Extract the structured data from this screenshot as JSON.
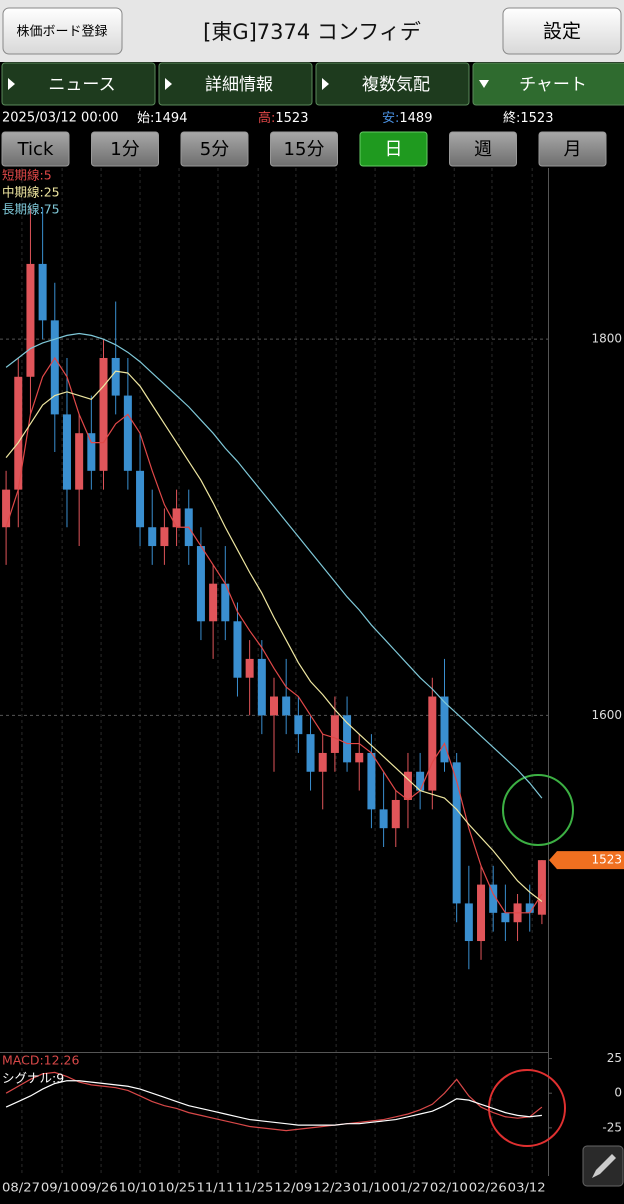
{
  "header": {
    "register": "株価ボード登録",
    "title": "[東G]7374 コンフィデ",
    "settings": "設定"
  },
  "tabs": [
    "ニュース",
    "詳細情報",
    "複数気配",
    "チャート"
  ],
  "active_tab": 3,
  "info": {
    "datetime": "2025/03/12 00:00",
    "open_label": "始:",
    "open": 1494,
    "high_label": "高:",
    "high": 1523,
    "low_label": "安:",
    "low": 1489,
    "close_label": "終:",
    "close": 1523
  },
  "periods": [
    "Tick",
    "1分",
    "5分",
    "15分",
    "日",
    "週",
    "月"
  ],
  "active_period": 4,
  "chart_data": [
    {
      "type": "candlestick",
      "up_color": "#e0555a",
      "down_color": "#3a8fd0",
      "xlim": [
        -0.5,
        44.5
      ],
      "xticks": [
        {
          "value": 1.3,
          "label": "08/27"
        },
        {
          "value": 4.6,
          "label": "09/10"
        },
        {
          "value": 7.8,
          "label": "09/26"
        },
        {
          "value": 11,
          "label": "10/10"
        },
        {
          "value": 14.2,
          "label": "10/25"
        },
        {
          "value": 17.4,
          "label": "11/11"
        },
        {
          "value": 20.7,
          "label": "11/25"
        },
        {
          "value": 23.8,
          "label": "12/09"
        },
        {
          "value": 27.1,
          "label": "12/23"
        },
        {
          "value": 30.3,
          "label": "01/10"
        },
        {
          "value": 33.5,
          "label": "01/27"
        },
        {
          "value": 36.8,
          "label": "02/10"
        },
        {
          "value": 39.9,
          "label": "02/26"
        },
        {
          "value": 43.2,
          "label": "03/12"
        }
      ],
      "ylim": [
        1421,
        1891
      ],
      "yticks": [
        1800,
        1600
      ],
      "last_price": 1523,
      "open": [
        1700,
        1720,
        1780,
        1840,
        1810,
        1760,
        1720,
        1750,
        1730,
        1790,
        1770,
        1730,
        1700,
        1690,
        1700,
        1710,
        1690,
        1650,
        1670,
        1650,
        1620,
        1630,
        1600,
        1610,
        1600,
        1590,
        1570,
        1580,
        1600,
        1575,
        1580,
        1550,
        1540,
        1555,
        1570,
        1560,
        1610,
        1575,
        1500,
        1480,
        1510,
        1495,
        1490,
        1500,
        1494
      ],
      "high": [
        1730,
        1790,
        1870,
        1870,
        1830,
        1790,
        1760,
        1770,
        1800,
        1820,
        1790,
        1750,
        1720,
        1710,
        1720,
        1720,
        1700,
        1680,
        1690,
        1660,
        1640,
        1640,
        1620,
        1630,
        1610,
        1600,
        1590,
        1610,
        1610,
        1590,
        1590,
        1570,
        1560,
        1580,
        1580,
        1620,
        1630,
        1580,
        1520,
        1520,
        1520,
        1510,
        1505,
        1510,
        1523
      ],
      "low": [
        1680,
        1700,
        1760,
        1800,
        1740,
        1700,
        1690,
        1720,
        1720,
        1760,
        1720,
        1690,
        1680,
        1680,
        1690,
        1680,
        1640,
        1630,
        1640,
        1610,
        1600,
        1590,
        1570,
        1590,
        1580,
        1560,
        1550,
        1570,
        1570,
        1560,
        1540,
        1530,
        1530,
        1540,
        1550,
        1550,
        1570,
        1490,
        1465,
        1470,
        1485,
        1480,
        1480,
        1485,
        1489
      ],
      "close": [
        1720,
        1780,
        1840,
        1810,
        1760,
        1720,
        1750,
        1730,
        1790,
        1770,
        1730,
        1700,
        1690,
        1700,
        1710,
        1690,
        1650,
        1670,
        1650,
        1620,
        1630,
        1600,
        1610,
        1600,
        1590,
        1570,
        1580,
        1600,
        1575,
        1580,
        1550,
        1540,
        1555,
        1570,
        1560,
        1610,
        1575,
        1500,
        1480,
        1510,
        1495,
        1490,
        1500,
        1495,
        1523
      ],
      "series": [
        {
          "name": "短期線:5",
          "color": "#e04848",
          "values": [
            1700,
            1720,
            1760,
            1780,
            1790,
            1780,
            1760,
            1745,
            1745,
            1755,
            1760,
            1750,
            1730,
            1712,
            1700,
            1700,
            1690,
            1680,
            1670,
            1655,
            1645,
            1636,
            1625,
            1615,
            1610,
            1600,
            1590,
            1588,
            1585,
            1585,
            1580,
            1570,
            1560,
            1555,
            1560,
            1575,
            1585,
            1565,
            1540,
            1520,
            1505,
            1495,
            1495,
            1495,
            1505
          ]
        },
        {
          "name": "中期線:25",
          "color": "#eee6a0",
          "values": [
            1737,
            1745,
            1755,
            1765,
            1770,
            1772,
            1770,
            1768,
            1775,
            1783,
            1782,
            1775,
            1765,
            1755,
            1745,
            1735,
            1725,
            1713,
            1700,
            1688,
            1676,
            1665,
            1652,
            1640,
            1628,
            1618,
            1611,
            1603,
            1596,
            1590,
            1584,
            1578,
            1572,
            1566,
            1560,
            1558,
            1556,
            1550,
            1542,
            1535,
            1528,
            1520,
            1512,
            1506,
            1501
          ]
        },
        {
          "name": "長期線:75",
          "color": "#7fc8d8",
          "values": [
            1785,
            1790,
            1795,
            1798,
            1800,
            1802,
            1803,
            1802,
            1800,
            1797,
            1793,
            1788,
            1782,
            1776,
            1770,
            1764,
            1757,
            1750,
            1742,
            1735,
            1727,
            1719,
            1711,
            1703,
            1695,
            1687,
            1679,
            1671,
            1663,
            1656,
            1648,
            1641,
            1634,
            1627,
            1620,
            1614,
            1607,
            1601,
            1595,
            1589,
            1583,
            1577,
            1571,
            1564,
            1556
          ]
        }
      ]
    },
    {
      "type": "line",
      "xlim": [
        -0.5,
        44.5
      ],
      "ylim": [
        -59,
        29
      ],
      "yticks": [
        25,
        0,
        -25
      ],
      "series": [
        {
          "name": "MACD:12.26",
          "color": "#d84848",
          "values": [
            0,
            5,
            10,
            14,
            15,
            12,
            8,
            6,
            5,
            4,
            2,
            -2,
            -6,
            -9,
            -11,
            -14,
            -16,
            -18,
            -20,
            -22,
            -24,
            -25,
            -26,
            -27,
            -26,
            -25,
            -24,
            -23,
            -22,
            -21,
            -20,
            -19,
            -17,
            -15,
            -12,
            -8,
            0,
            10,
            -2,
            -10,
            -14,
            -17,
            -18,
            -17,
            -10
          ]
        },
        {
          "name": "シグナル:9",
          "color": "#ffffff",
          "values": [
            -10,
            -6,
            -2,
            3,
            7,
            9,
            9,
            8,
            7,
            6,
            5,
            3,
            0,
            -3,
            -6,
            -9,
            -11,
            -13,
            -15,
            -17,
            -19,
            -20,
            -21,
            -22,
            -23,
            -23,
            -23,
            -23,
            -22,
            -22,
            -21,
            -20,
            -19,
            -17,
            -15,
            -13,
            -9,
            -4,
            -5,
            -8,
            -11,
            -14,
            -16,
            -17,
            -16
          ]
        }
      ]
    }
  ]
}
